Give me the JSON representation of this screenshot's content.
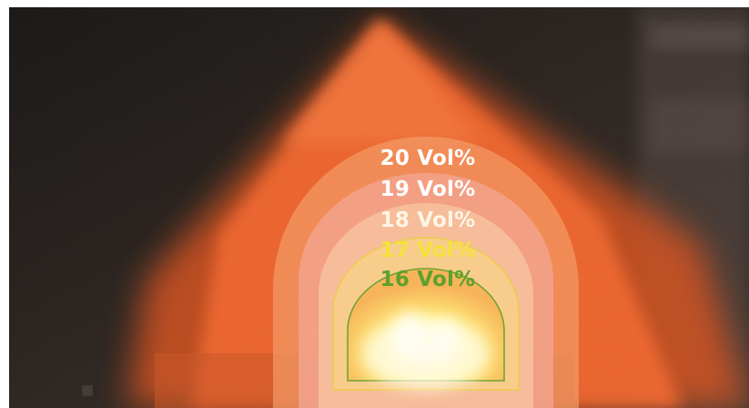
{
  "zones": [
    {
      "label": "20 Vol%",
      "color": "#ffffff"
    },
    {
      "label": "19 Vol%",
      "color": "#ffffff"
    },
    {
      "label": "18 Vol%",
      "color": "#fff5e6"
    },
    {
      "label": "17 Vol%",
      "color": "#f5e23a"
    },
    {
      "label": "16 Vol%",
      "color": "#5fa02c"
    }
  ],
  "palette": {
    "background": "#1a1614",
    "spray": "#ff6a2e",
    "zone_outer": "#f59a6a",
    "zone_core": "#fff27a",
    "outline_yellow": "#e8d23a",
    "outline_green": "#6aa030"
  }
}
